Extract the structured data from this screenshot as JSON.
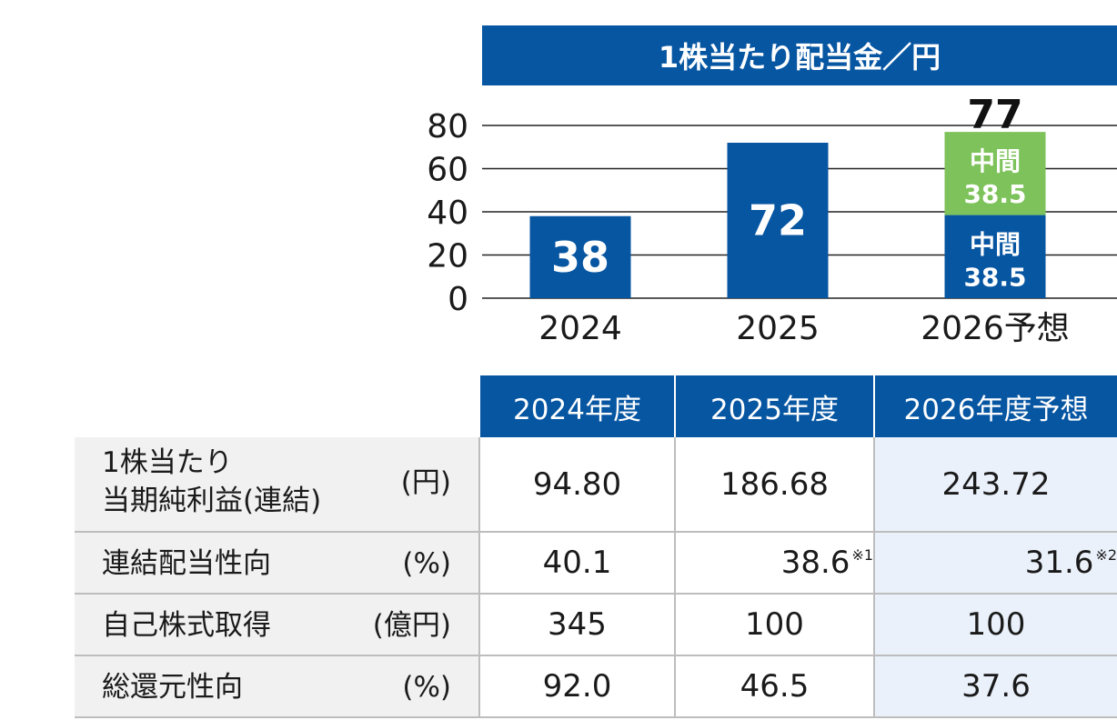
{
  "chart_data": {
    "type": "bar",
    "title": "1株当たり配当金／円",
    "categories": [
      "2024",
      "2025",
      "2026予想"
    ],
    "yticks": [
      0,
      20,
      40,
      60,
      80
    ],
    "ylim": [
      0,
      80
    ],
    "bars": [
      {
        "category": "2024",
        "value": 38,
        "label": "38"
      },
      {
        "category": "2025",
        "value": 72,
        "label": "72"
      },
      {
        "category": "2026予想",
        "total": 77,
        "total_label": "77",
        "segments": [
          {
            "value": 38.5,
            "label_top": "中間",
            "label_bottom": "38.5",
            "color": "#0756A2"
          },
          {
            "value": 38.5,
            "label_top": "中間",
            "label_bottom": "38.5",
            "color": "#7DC25A"
          }
        ]
      }
    ]
  },
  "table": {
    "headers": [
      "2024年度",
      "2025年度",
      "2026年度予想"
    ],
    "rows": [
      {
        "label_line1": "1株当たり",
        "label_line2": "当期純利益(連結)",
        "unit": "(円)",
        "values": [
          "94.80",
          "186.68",
          "243.72"
        ],
        "notes": [
          "",
          "",
          ""
        ]
      },
      {
        "label_line1": "連結配当性向",
        "unit": "(%)",
        "values": [
          "40.1",
          "38.6",
          "31.6"
        ],
        "notes": [
          "",
          "※1",
          "※2"
        ]
      },
      {
        "label_line1": "自己株式取得",
        "unit": "(億円)",
        "values": [
          "345",
          "100",
          "100"
        ],
        "notes": [
          "",
          "",
          ""
        ]
      },
      {
        "label_line1": "総還元性向",
        "unit": "(%)",
        "values": [
          "92.0",
          "46.5",
          "37.6"
        ],
        "notes": [
          "",
          "",
          ""
        ]
      }
    ]
  },
  "colors": {
    "primary": "#0756A2",
    "accent": "#7DC25A",
    "grid": "#222222",
    "highlight": "#EAF1FA"
  }
}
